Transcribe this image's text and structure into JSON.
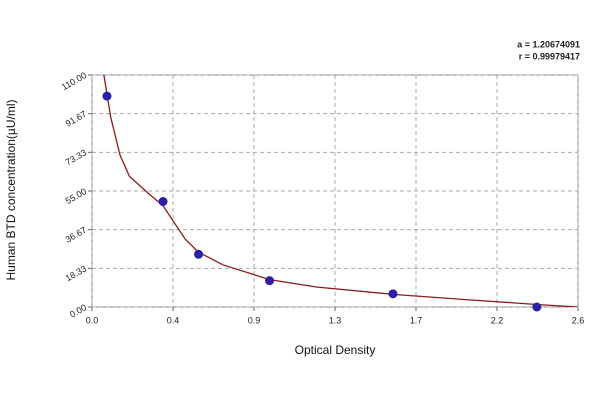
{
  "chart_data": {
    "type": "scatter",
    "xlabel": "Optical Density",
    "ylabel": "Human BTD concentration(µU/ml)",
    "annotations": [
      "a = 1.20674091",
      "r = 0.99979417"
    ],
    "xlim": [
      0,
      2.6
    ],
    "ylim": [
      0,
      110
    ],
    "xticks": [
      {
        "value": 0,
        "label": "0.0"
      },
      {
        "value": 0.4333,
        "label": "0.4"
      },
      {
        "value": 0.8667,
        "label": "0.9"
      },
      {
        "value": 1.3,
        "label": "1.3"
      },
      {
        "value": 1.7333,
        "label": "1.7"
      },
      {
        "value": 2.1667,
        "label": "2.2"
      },
      {
        "value": 2.6,
        "label": "2.6"
      }
    ],
    "yticks": [
      {
        "value": 0,
        "label": "0.00"
      },
      {
        "value": 18.33,
        "label": "18.33"
      },
      {
        "value": 36.67,
        "label": "36.67"
      },
      {
        "value": 55,
        "label": "55.00"
      },
      {
        "value": 73.33,
        "label": "73.33"
      },
      {
        "value": 91.67,
        "label": "91.67"
      },
      {
        "value": 110,
        "label": "110.00"
      }
    ],
    "grid": true,
    "series": [
      {
        "color": "#2b1fa6",
        "x": [
          0.08,
          0.38,
          0.57,
          0.95,
          1.61,
          2.38
        ],
        "values": [
          100,
          50,
          25,
          12.5,
          6.25,
          0
        ]
      },
      {
        "color": "#8b1c1c",
        "x": [
          0.06,
          0.1,
          0.15,
          0.2,
          0.3,
          0.38,
          0.5,
          0.57,
          0.7,
          0.95,
          1.2,
          1.61,
          2.0,
          2.38,
          2.6
        ],
        "values": [
          112,
          90,
          72,
          62,
          54,
          48,
          32,
          26,
          20,
          13,
          9.5,
          6,
          3.5,
          1.2,
          0
        ]
      }
    ]
  }
}
